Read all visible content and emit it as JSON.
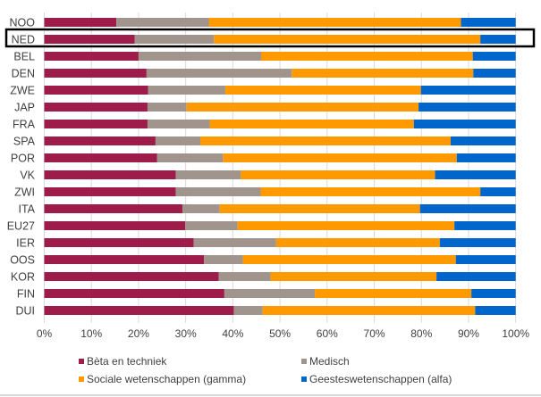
{
  "chart_data": {
    "type": "bar",
    "orientation": "horizontal",
    "stacked": "100%",
    "title": "",
    "xlabel": "",
    "ylabel": "",
    "xlim": [
      0,
      100
    ],
    "x_ticks": [
      "0%",
      "10%",
      "20%",
      "30%",
      "40%",
      "50%",
      "60%",
      "70%",
      "80%",
      "90%",
      "100%"
    ],
    "grid": true,
    "legend_position": "bottom",
    "highlighted_category": "NED",
    "categories": [
      "NOO",
      "NED",
      "BEL",
      "DEN",
      "ZWE",
      "JAP",
      "FRA",
      "SPA",
      "POR",
      "VK",
      "ZWI",
      "ITA",
      "EU27",
      "IER",
      "OOS",
      "KOR",
      "FIN",
      "DUI"
    ],
    "series": [
      {
        "name": "Bèta en techniek",
        "color": "#9e1c4a",
        "values": [
          15.3,
          19.2,
          20.0,
          21.7,
          22.0,
          21.9,
          21.9,
          23.6,
          23.9,
          27.9,
          27.9,
          29.3,
          29.9,
          31.7,
          33.9,
          37.0,
          38.2,
          40.2
        ]
      },
      {
        "name": "Medisch",
        "color": "#a0948c",
        "values": [
          19.6,
          16.8,
          26.0,
          30.8,
          16.4,
          8.3,
          13.2,
          9.5,
          14.0,
          13.8,
          18.0,
          7.9,
          11.1,
          17.5,
          8.2,
          11.0,
          19.2,
          6.1
        ]
      },
      {
        "name": "Sociale wetenschappen (gamma)",
        "color": "#ff9900",
        "values": [
          53.5,
          56.5,
          44.9,
          38.5,
          41.5,
          49.2,
          43.3,
          53.1,
          49.6,
          41.2,
          46.6,
          42.5,
          46.0,
          34.7,
          45.2,
          35.2,
          33.2,
          45.1
        ]
      },
      {
        "name": "Geesteswetenschappen (alfa)",
        "color": "#0066cc",
        "values": [
          11.6,
          7.5,
          9.1,
          9.0,
          20.1,
          20.6,
          21.6,
          13.8,
          12.5,
          17.1,
          7.5,
          20.3,
          13.0,
          16.1,
          12.7,
          16.8,
          9.4,
          8.6
        ]
      }
    ]
  },
  "legend": {
    "items": [
      {
        "label": "Bèta en techniek",
        "color": "#9e1c4a"
      },
      {
        "label": "Medisch",
        "color": "#a0948c"
      },
      {
        "label": "Sociale wetenschappen (gamma)",
        "color": "#ff9900"
      },
      {
        "label": "Geesteswetenschappen (alfa)",
        "color": "#0066cc"
      }
    ]
  }
}
